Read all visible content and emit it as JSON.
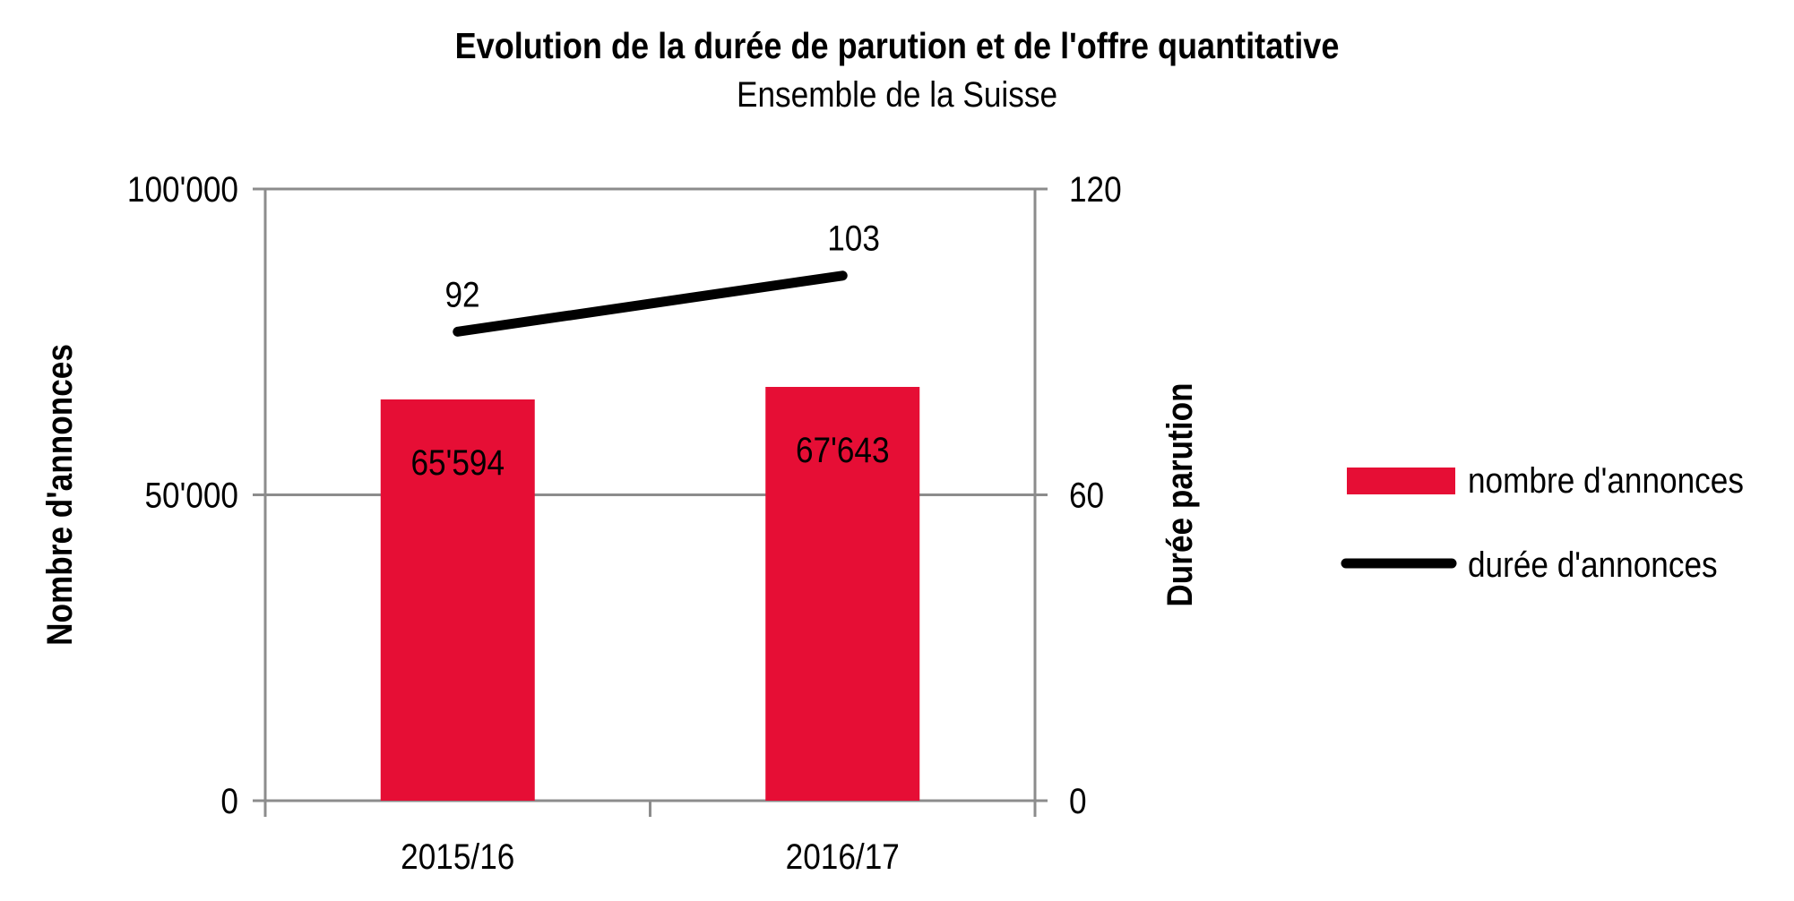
{
  "chart_data": {
    "type": "bar",
    "title": "Evolution de la durée de parution et de l'offre quantitative",
    "subtitle": "Ensemble de la Suisse",
    "categories": [
      "2015/16",
      "2016/17"
    ],
    "ylabel": "Nombre d'annonces",
    "y2label": "Durée parution",
    "ylim": [
      0,
      100000
    ],
    "y2lim": [
      0,
      120
    ],
    "yticks": [
      "0",
      "50'000",
      "100'000"
    ],
    "y2ticks": [
      "0",
      "60",
      "120"
    ],
    "grid": true,
    "legend_position": "right",
    "series": [
      {
        "name": "nombre d'annonces",
        "type": "bar",
        "axis": "left",
        "color": "#e60e35",
        "values": [
          65594,
          67643
        ],
        "labels": [
          "65'594",
          "67'643"
        ]
      },
      {
        "name": "durée d'annonces",
        "type": "line",
        "axis": "right",
        "color": "#000000",
        "values": [
          92,
          103
        ],
        "labels": [
          "92",
          "103"
        ]
      }
    ]
  }
}
